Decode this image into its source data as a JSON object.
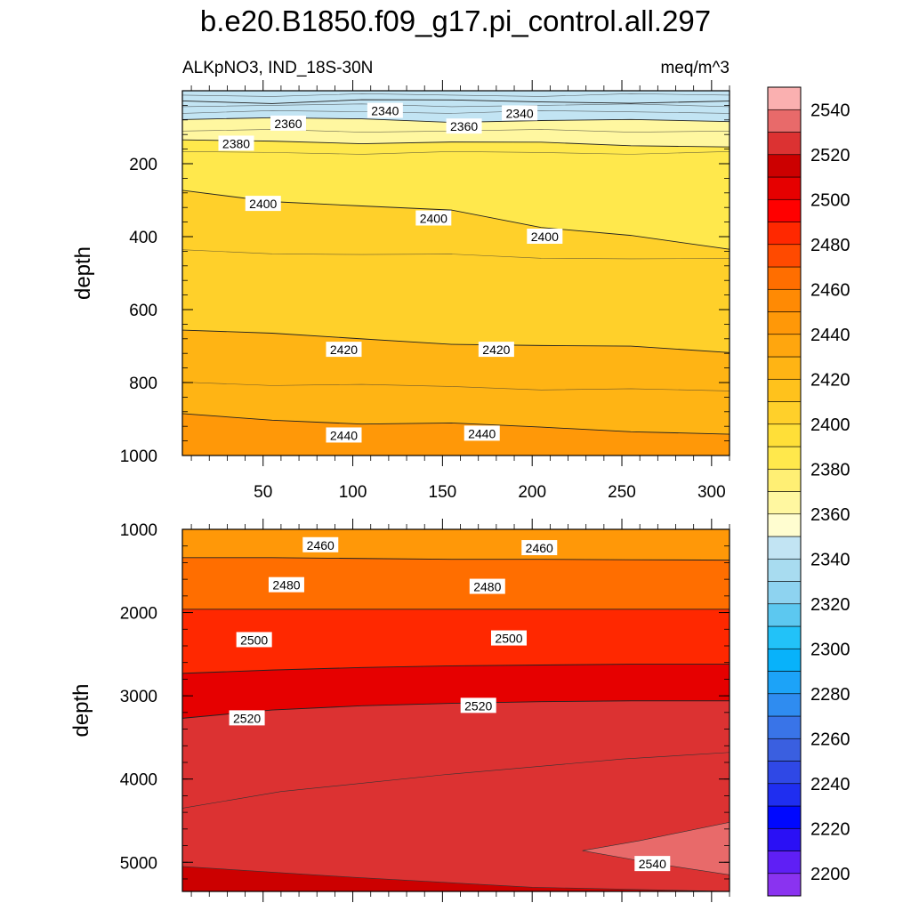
{
  "title": "b.e20.B1850.f09_g17.pi_control.all.297",
  "subtitle_left": "ALKpNO3, IND_18S-30N",
  "subtitle_right": "meq/m^3",
  "chart_data": [
    {
      "type": "contour",
      "panel": "upper",
      "xlabel": "",
      "ylabel": "depth",
      "xlim": [
        5,
        310
      ],
      "ylim": [
        1000,
        0
      ],
      "xticks": [
        50,
        100,
        150,
        200,
        250,
        300
      ],
      "yticks": [
        200,
        400,
        600,
        800,
        1000
      ],
      "contour_lines": [
        {
          "level": 2340,
          "depths": [
            28,
            30,
            26,
            30,
            28,
            30,
            32
          ]
        },
        {
          "level": 2360,
          "depths": [
            75,
            78,
            80,
            82,
            80,
            84,
            85
          ]
        },
        {
          "level": 2380,
          "depths": [
            140,
            138,
            140,
            142,
            146,
            148,
            150
          ]
        },
        {
          "level": 2400,
          "depths": [
            270,
            300,
            320,
            330,
            370,
            395,
            440
          ]
        },
        {
          "level": 2420,
          "depths": [
            655,
            670,
            680,
            690,
            700,
            705,
            715
          ]
        },
        {
          "level": 2440,
          "depths": [
            890,
            900,
            910,
            915,
            925,
            930,
            940
          ]
        }
      ],
      "x_nodes": [
        5,
        55,
        105,
        155,
        205,
        255,
        310
      ],
      "labels": [
        {
          "text": "2340",
          "x": 118,
          "depth": 55
        },
        {
          "text": "2340",
          "x": 193,
          "depth": 62
        },
        {
          "text": "2360",
          "x": 64,
          "depth": 90
        },
        {
          "text": "2360",
          "x": 162,
          "depth": 98
        },
        {
          "text": "2380",
          "x": 35,
          "depth": 145
        },
        {
          "text": "2400",
          "x": 50,
          "depth": 310
        },
        {
          "text": "2400",
          "x": 145,
          "depth": 350
        },
        {
          "text": "2400",
          "x": 207,
          "depth": 400
        },
        {
          "text": "2420",
          "x": 95,
          "depth": 710
        },
        {
          "text": "2420",
          "x": 180,
          "depth": 710
        },
        {
          "text": "2440",
          "x": 95,
          "depth": 945
        },
        {
          "text": "2440",
          "x": 172,
          "depth": 940
        }
      ]
    },
    {
      "type": "contour",
      "panel": "lower",
      "xlabel": "",
      "ylabel": "depth",
      "xlim": [
        5,
        310
      ],
      "ylim": [
        5350,
        1000
      ],
      "yticks": [
        1000,
        2000,
        3000,
        4000,
        5000
      ],
      "contour_lines": [
        {
          "level": 2460,
          "depths": [
            1340,
            1340,
            1350,
            1360,
            1360,
            1365,
            1370
          ]
        },
        {
          "level": 2480,
          "depths": [
            1960,
            1960,
            1960,
            1960,
            1960,
            1960,
            1960
          ]
        },
        {
          "level": 2500,
          "depths": [
            2730,
            2690,
            2660,
            2640,
            2630,
            2620,
            2620
          ]
        },
        {
          "level": 2520,
          "depths": [
            3270,
            3170,
            3120,
            3090,
            3070,
            3060,
            3060
          ]
        }
      ],
      "x_nodes": [
        5,
        55,
        105,
        155,
        205,
        255,
        310
      ],
      "labels": [
        {
          "text": "2460",
          "x": 82,
          "depth": 1190
        },
        {
          "text": "2460",
          "x": 204,
          "depth": 1225
        },
        {
          "text": "2480",
          "x": 63,
          "depth": 1670
        },
        {
          "text": "2480",
          "x": 175,
          "depth": 1690
        },
        {
          "text": "2500",
          "x": 45,
          "depth": 2330
        },
        {
          "text": "2500",
          "x": 187,
          "depth": 2310
        },
        {
          "text": "2520",
          "x": 41,
          "depth": 3270
        },
        {
          "text": "2520",
          "x": 170,
          "depth": 3120
        },
        {
          "text": "2540",
          "x": 267,
          "depth": 5020
        }
      ]
    },
    {
      "type": "colorbar",
      "levels": [
        2200,
        2210,
        2220,
        2230,
        2240,
        2250,
        2260,
        2270,
        2280,
        2290,
        2300,
        2310,
        2320,
        2330,
        2340,
        2350,
        2360,
        2370,
        2380,
        2390,
        2400,
        2410,
        2420,
        2430,
        2440,
        2450,
        2460,
        2470,
        2480,
        2490,
        2500,
        2510,
        2520,
        2530,
        2540,
        2550
      ],
      "tick_labels": [
        "2200",
        "2220",
        "2240",
        "2260",
        "2280",
        "2300",
        "2320",
        "2340",
        "2360",
        "2380",
        "2400",
        "2420",
        "2440",
        "2460",
        "2480",
        "2500",
        "2520",
        "2540"
      ],
      "colors": [
        "#8a33f0",
        "#5f1ff5",
        "#2a10f5",
        "#0008ff",
        "#1f2ef0",
        "#2f48e6",
        "#3a5fe0",
        "#3974e8",
        "#2f8cf0",
        "#1ca3f8",
        "#08b2fa",
        "#22c2f8",
        "#5cc8f0",
        "#8ed3f0",
        "#a8dcf0",
        "#c2e4f3",
        "#fffdd0",
        "#fff7a0",
        "#ffef74",
        "#ffe84c",
        "#ffdf38",
        "#ffd02a",
        "#ffc21c",
        "#ffb414",
        "#ffa60e",
        "#ff9808",
        "#ff8a04",
        "#ff6e00",
        "#ff4a00",
        "#ff2800",
        "#ff0000",
        "#e60000",
        "#cc0000",
        "#dc3232",
        "#e86a6a",
        "#fab0b0"
      ]
    }
  ]
}
